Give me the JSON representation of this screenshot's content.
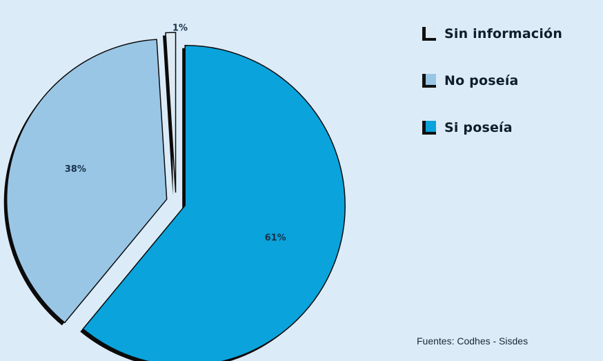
{
  "chart_data": {
    "type": "pie",
    "slices": [
      {
        "label": "Si poseía",
        "value": 61,
        "display": "61%",
        "color": "#0aa3dc"
      },
      {
        "label": "No poseía",
        "value": 38,
        "display": "38%",
        "color": "#9ac6e6"
      },
      {
        "label": "Sin información",
        "value": 1,
        "display": "1%",
        "color": "#dde9f3"
      }
    ],
    "legend": [
      {
        "label": "Sin información",
        "color": "#dde9f3"
      },
      {
        "label": "No poseía",
        "color": "#9ac6e6"
      },
      {
        "label": "Si poseía",
        "color": "#0aa3dc"
      }
    ],
    "exploded": true,
    "legend_position": "right",
    "source": "Fuentes: Codhes - Sisdes"
  }
}
